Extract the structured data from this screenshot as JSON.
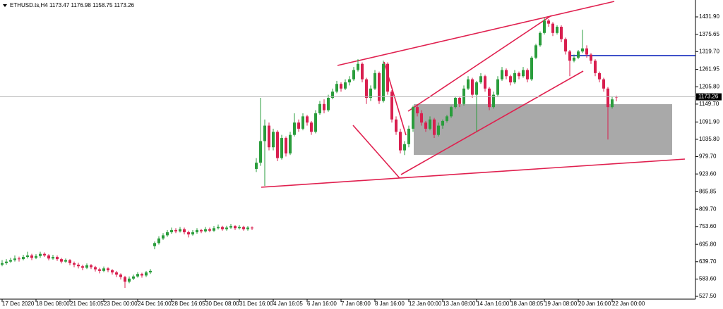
{
  "chart_data": {
    "type": "candlestick",
    "title": "ETHUSD.ts,H4  1173.47 1176.98 1158.75 1173.26",
    "up_color": "#2a9d3c",
    "down_color": "#d81f4f",
    "grid": false,
    "ylim": [
      518.5,
      1486.6
    ],
    "yticks": [
      {
        "value": 1431.9,
        "label": "1431.90"
      },
      1375.65,
      {
        "value": 1319.7,
        "label": "1319.70"
      },
      1261.95,
      {
        "value": 1205.8,
        "label": "1205.80"
      },
      {
        "value": 1149.7,
        "label": "1149.70"
      },
      {
        "value": 1091.9,
        "label": "1091.90"
      },
      {
        "value": 1035.8,
        "label": "1035.80"
      },
      {
        "value": 979.7,
        "label": "979.70"
      },
      {
        "value": 923.6,
        "label": "923.60"
      },
      865.85,
      {
        "value": 809.7,
        "label": "809.70"
      },
      {
        "value": 753.6,
        "label": "753.60"
      },
      {
        "value": 695.8,
        "label": "695.80"
      },
      {
        "value": 639.7,
        "label": "639.70"
      },
      {
        "value": 583.6,
        "label": "583.60"
      },
      {
        "value": 527.5,
        "label": "527.50"
      }
    ],
    "categories": [
      "17 Dec 2020",
      null,
      null,
      null,
      null,
      null,
      null,
      null,
      "18 Dec 08:00",
      null,
      null,
      null,
      null,
      null,
      null,
      null,
      "21 Dec 16:05",
      null,
      null,
      null,
      null,
      null,
      null,
      null,
      "23 Dec 00:00",
      null,
      null,
      null,
      null,
      null,
      null,
      null,
      "24 Dec 16:00",
      null,
      null,
      null,
      null,
      null,
      null,
      null,
      "28 Dec 16:05",
      null,
      null,
      null,
      null,
      null,
      null,
      null,
      "30 Dec 08:00",
      null,
      null,
      null,
      null,
      null,
      null,
      null,
      "31 Dec 16:00",
      null,
      null,
      null,
      null,
      null,
      null,
      null,
      "4 Jan 16:05",
      null,
      null,
      null,
      null,
      null,
      null,
      null,
      "6 Jan 16:00",
      null,
      null,
      null,
      null,
      null,
      null,
      null,
      "7 Jan 08:00",
      null,
      null,
      null,
      null,
      null,
      null,
      null,
      "8 Jan 16:00",
      null,
      null,
      null,
      null,
      null,
      null,
      null,
      "12 Jan 00:00",
      null,
      null,
      null,
      null,
      null,
      null,
      null,
      "13 Jan 08:00",
      null,
      null,
      null,
      null,
      null,
      null,
      null,
      "14 Jan 16:00",
      null,
      null,
      null,
      null,
      null,
      null,
      null,
      "18 Jan 08:05",
      null,
      null,
      null,
      null,
      null,
      null,
      null,
      "19 Jan 08:00",
      null,
      null,
      null,
      null,
      null,
      null,
      null,
      "20 Jan 16:00",
      null,
      null,
      null,
      null,
      null,
      null,
      null,
      "22 Jan 00:00",
      null
    ],
    "candles": [
      [
        630,
        645,
        625,
        635
      ],
      [
        635,
        648,
        630,
        640
      ],
      [
        640,
        652,
        636,
        645
      ],
      [
        645,
        660,
        640,
        650
      ],
      [
        650,
        656,
        640,
        648
      ],
      [
        648,
        662,
        644,
        655
      ],
      [
        655,
        672,
        650,
        660
      ],
      [
        660,
        665,
        645,
        652
      ],
      [
        652,
        664,
        648,
        658
      ],
      [
        658,
        672,
        652,
        665
      ],
      [
        665,
        670,
        655,
        660
      ],
      [
        660,
        664,
        644,
        650
      ],
      [
        650,
        662,
        646,
        655
      ],
      [
        655,
        660,
        642,
        648
      ],
      [
        648,
        652,
        634,
        640
      ],
      [
        640,
        650,
        636,
        645
      ],
      [
        645,
        648,
        628,
        635
      ],
      [
        635,
        640,
        622,
        630
      ],
      [
        630,
        636,
        618,
        625
      ],
      [
        625,
        630,
        612,
        620
      ],
      [
        620,
        634,
        616,
        628
      ],
      [
        628,
        632,
        616,
        622
      ],
      [
        622,
        626,
        608,
        615
      ],
      [
        615,
        620,
        602,
        610
      ],
      [
        610,
        624,
        606,
        618
      ],
      [
        618,
        622,
        606,
        612
      ],
      [
        612,
        616,
        598,
        605
      ],
      [
        605,
        610,
        590,
        598
      ],
      [
        598,
        602,
        582,
        590
      ],
      [
        590,
        594,
        555,
        575
      ],
      [
        575,
        592,
        570,
        585
      ],
      [
        585,
        598,
        580,
        592
      ],
      [
        592,
        606,
        588,
        600
      ],
      [
        600,
        604,
        588,
        595
      ],
      [
        595,
        610,
        590,
        605
      ],
      [
        605,
        616,
        600,
        610
      ],
      [
        690,
        705,
        680,
        700
      ],
      [
        700,
        722,
        695,
        715
      ],
      [
        715,
        732,
        710,
        725
      ],
      [
        725,
        742,
        720,
        735
      ],
      [
        735,
        750,
        730,
        742
      ],
      [
        742,
        748,
        732,
        738
      ],
      [
        738,
        752,
        734,
        745
      ],
      [
        745,
        750,
        728,
        735
      ],
      [
        735,
        740,
        718,
        728
      ],
      [
        728,
        742,
        724,
        735
      ],
      [
        735,
        748,
        730,
        742
      ],
      [
        742,
        746,
        732,
        738
      ],
      [
        738,
        752,
        734,
        745
      ],
      [
        745,
        750,
        735,
        740
      ],
      [
        740,
        755,
        736,
        748
      ],
      [
        748,
        760,
        744,
        752
      ],
      [
        752,
        756,
        740,
        745
      ],
      [
        745,
        756,
        740,
        750
      ],
      [
        750,
        762,
        746,
        755
      ],
      [
        755,
        758,
        742,
        748
      ],
      [
        748,
        758,
        744,
        752
      ],
      [
        752,
        756,
        740,
        745
      ],
      [
        745,
        755,
        740,
        750
      ],
      [
        750,
        754,
        742,
        748
      ],
      [
        940,
        975,
        930,
        960
      ],
      [
        960,
        1170,
        950,
        1030
      ],
      [
        1030,
        1100,
        885,
        1080
      ],
      [
        1080,
        1090,
        1000,
        1010
      ],
      [
        1010,
        1070,
        1000,
        1060
      ],
      [
        1060,
        1065,
        965,
        975
      ],
      [
        975,
        1050,
        970,
        1040
      ],
      [
        1040,
        1045,
        980,
        990
      ],
      [
        990,
        1060,
        985,
        1050
      ],
      [
        1050,
        1120,
        1045,
        1090
      ],
      [
        1090,
        1100,
        1060,
        1070
      ],
      [
        1070,
        1120,
        1065,
        1110
      ],
      [
        1110,
        1115,
        1080,
        1090
      ],
      [
        1090,
        1095,
        1050,
        1060
      ],
      [
        1060,
        1130,
        1055,
        1120
      ],
      [
        1120,
        1160,
        1115,
        1150
      ],
      [
        1150,
        1165,
        1120,
        1130
      ],
      [
        1130,
        1180,
        1125,
        1170
      ],
      [
        1170,
        1200,
        1165,
        1190
      ],
      [
        1190,
        1225,
        1185,
        1215
      ],
      [
        1215,
        1220,
        1190,
        1200
      ],
      [
        1200,
        1230,
        1195,
        1220
      ],
      [
        1220,
        1240,
        1210,
        1230
      ],
      [
        1230,
        1270,
        1225,
        1260
      ],
      [
        1260,
        1295,
        1255,
        1280
      ],
      [
        1280,
        1285,
        1220,
        1230
      ],
      [
        1230,
        1235,
        1150,
        1170
      ],
      [
        1170,
        1210,
        1160,
        1200
      ],
      [
        1200,
        1260,
        1195,
        1250
      ],
      [
        1250,
        1255,
        1150,
        1160
      ],
      [
        1160,
        1290,
        1155,
        1280
      ],
      [
        1280,
        1285,
        1180,
        1190
      ],
      [
        1190,
        1195,
        1090,
        1100
      ],
      [
        1100,
        1110,
        1050,
        1060
      ],
      [
        1060,
        1070,
        990,
        1000
      ],
      [
        1000,
        1030,
        985,
        1020
      ],
      [
        1020,
        1080,
        1010,
        1070
      ],
      [
        1070,
        1145,
        1060,
        1140
      ],
      [
        1140,
        1150,
        1110,
        1120
      ],
      [
        1120,
        1130,
        1080,
        1090
      ],
      [
        1090,
        1095,
        1060,
        1070
      ],
      [
        1070,
        1110,
        1065,
        1100
      ],
      [
        1100,
        1105,
        1040,
        1050
      ],
      [
        1050,
        1090,
        1045,
        1080
      ],
      [
        1080,
        1100,
        1070,
        1095
      ],
      [
        1095,
        1115,
        1090,
        1110
      ],
      [
        1110,
        1145,
        1105,
        1140
      ],
      [
        1140,
        1175,
        1135,
        1170
      ],
      [
        1170,
        1175,
        1140,
        1150
      ],
      [
        1150,
        1210,
        1145,
        1200
      ],
      [
        1200,
        1240,
        1195,
        1230
      ],
      [
        1230,
        1235,
        1170,
        1180
      ],
      [
        1180,
        1225,
        1060,
        1220
      ],
      [
        1220,
        1250,
        1215,
        1240
      ],
      [
        1240,
        1245,
        1190,
        1200
      ],
      [
        1200,
        1205,
        1130,
        1140
      ],
      [
        1140,
        1190,
        1135,
        1180
      ],
      [
        1180,
        1240,
        1175,
        1230
      ],
      [
        1230,
        1270,
        1225,
        1260
      ],
      [
        1260,
        1265,
        1230,
        1240
      ],
      [
        1240,
        1245,
        1210,
        1220
      ],
      [
        1220,
        1260,
        1215,
        1250
      ],
      [
        1250,
        1255,
        1230,
        1240
      ],
      [
        1240,
        1270,
        1235,
        1260
      ],
      [
        1260,
        1265,
        1220,
        1230
      ],
      [
        1230,
        1305,
        1225,
        1300
      ],
      [
        1300,
        1345,
        1295,
        1340
      ],
      [
        1340,
        1385,
        1335,
        1380
      ],
      [
        1380,
        1430,
        1375,
        1420
      ],
      [
        1420,
        1425,
        1400,
        1410
      ],
      [
        1410,
        1415,
        1370,
        1380
      ],
      [
        1380,
        1405,
        1375,
        1400
      ],
      [
        1400,
        1405,
        1350,
        1360
      ],
      [
        1360,
        1365,
        1310,
        1320
      ],
      [
        1320,
        1325,
        1240,
        1290
      ],
      [
        1290,
        1310,
        1285,
        1300
      ],
      [
        1300,
        1325,
        1295,
        1320
      ],
      [
        1320,
        1390,
        1315,
        1330
      ],
      [
        1330,
        1340,
        1300,
        1310
      ],
      [
        1310,
        1315,
        1280,
        1290
      ],
      [
        1290,
        1295,
        1240,
        1250
      ],
      [
        1250,
        1255,
        1220,
        1230
      ],
      [
        1230,
        1235,
        1190,
        1200
      ],
      [
        1200,
        1205,
        1035,
        1140
      ],
      [
        1140,
        1175,
        1135,
        1165
      ],
      [
        1173.47,
        1176.98,
        1158.75,
        1173.26
      ]
    ]
  }
}
